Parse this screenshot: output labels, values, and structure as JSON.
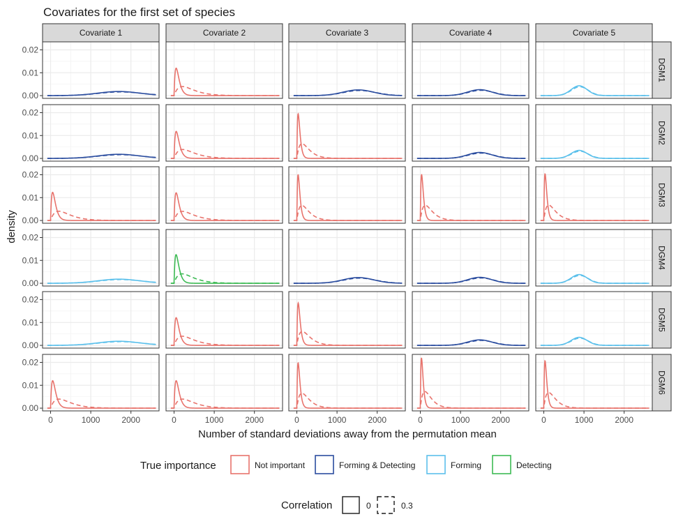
{
  "chart_data": {
    "type": "line",
    "title": "Covariates for the first set of species",
    "xlabel": "Number of standard deviations away from the permutation mean",
    "ylabel": "density",
    "xlim": [
      -200,
      2700
    ],
    "ylim": [
      -0.0012,
      0.0235
    ],
    "x_ticks": [
      "0",
      "1000",
      "2000"
    ],
    "x_tick_values": [
      0,
      1000,
      2000
    ],
    "y_ticks": [
      "0.00",
      "0.01",
      "0.02"
    ],
    "y_tick_values": [
      0,
      0.01,
      0.02
    ],
    "columns": [
      "Covariate 1",
      "Covariate 2",
      "Covariate 3",
      "Covariate 4",
      "Covariate 5"
    ],
    "rows": [
      "DGM1",
      "DGM2",
      "DGM3",
      "DGM4",
      "DGM5",
      "DGM6"
    ],
    "panels": [
      [
        "FD:1700:0.0018:520",
        "NI:40:0.012:6",
        "FD:1530:0.0025:380",
        "FD:1480:0.0026:300",
        "F:880:0.0043:200"
      ],
      [
        "FD:1700:0.0018:520",
        "NI:40:0.0118:6",
        "NI:15:0.0195:3",
        "FD:1480:0.0026:300",
        "F:880:0.0035:200"
      ],
      [
        "NI:40:0.0123:6",
        "NI:40:0.0121:6",
        "NI:15:0.02:3",
        "NI:10:0.0201:2",
        "NI:10:0.0204:2"
      ],
      [
        "F:1700:0.0018:520",
        "D:40:0.0125:6",
        "FD:1530:0.0025:380",
        "FD:1480:0.0026:300",
        "F:880:0.0038:200"
      ],
      [
        "F:1700:0.0018:520",
        "NI:40:0.0121:6",
        "NI:15:0.0185:3",
        "FD:1480:0.0024:300",
        "F:880:0.0035:200"
      ],
      [
        "NI:40:0.012:6",
        "NI:40:0.012:6",
        "NI:15:0.0198:3",
        "NI:10:0.022:2",
        "NI:10:0.0207:2"
      ]
    ],
    "legend_position": "bottom",
    "colors": {
      "NI": "#e8736c",
      "FD": "#2b4d9f",
      "F": "#5bc0eb",
      "D": "#3dbb54"
    },
    "legend_importance": {
      "title": "True importance",
      "items": [
        {
          "key": "NI",
          "label": "Not important"
        },
        {
          "key": "FD",
          "label": "Forming & Detecting"
        },
        {
          "key": "F",
          "label": "Forming"
        },
        {
          "key": "D",
          "label": "Detecting"
        }
      ]
    },
    "legend_correlation": {
      "title": "Correlation",
      "items": [
        {
          "label": "0",
          "linetype": "solid"
        },
        {
          "label": "0.3",
          "linetype": "dashed"
        }
      ]
    }
  }
}
